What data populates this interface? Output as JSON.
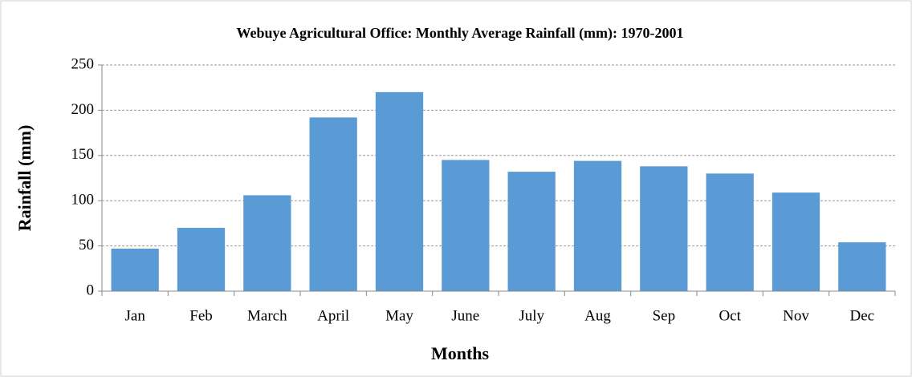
{
  "chart_data": {
    "type": "bar",
    "title": "Webuye Agricultural Office: Monthly Average Rainfall (mm): 1970-2001",
    "x_label": "Months",
    "y_label": "Rainfall (mm)",
    "categories": [
      "Jan",
      "Feb",
      "March",
      "April",
      "May",
      "June",
      "July",
      "Aug",
      "Sep",
      "Oct",
      "Nov",
      "Dec"
    ],
    "values": [
      47,
      70,
      106,
      192,
      220,
      145,
      132,
      144,
      138,
      130,
      109,
      54
    ],
    "color": "#5b9bd5",
    "ylim": [
      0,
      250
    ],
    "yticks": [
      0,
      50,
      100,
      150,
      200,
      250
    ],
    "grid": true
  }
}
